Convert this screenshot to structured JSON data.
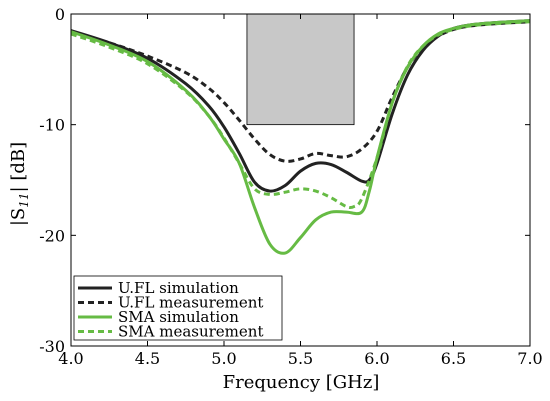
{
  "chart_data": {
    "type": "line",
    "xlabel": "Frequency [GHz]",
    "ylabel": "|S11| [dB]",
    "ylabel_main": "|S",
    "ylabel_sub": "11",
    "ylabel_rest": "| [dB]",
    "xlim": [
      4.0,
      7.0
    ],
    "ylim": [
      -30,
      0
    ],
    "x_ticks": [
      "4.0",
      "4.5",
      "5.0",
      "5.5",
      "6.0",
      "6.5",
      "7.0"
    ],
    "x_tick_values": [
      4.0,
      4.5,
      5.0,
      5.5,
      6.0,
      6.5,
      7.0
    ],
    "y_ticks": [
      "0",
      "-10",
      "-20",
      "-30"
    ],
    "y_tick_values": [
      0,
      -10,
      -20,
      -30
    ],
    "shaded_region": {
      "x": [
        5.15,
        5.85
      ],
      "y": [
        -10,
        0
      ],
      "color": "#c8c8c8"
    },
    "legend_position": "bottom-left",
    "series": [
      {
        "name": "U.FL simulation",
        "color": "#222222",
        "style": "solid",
        "x": [
          4.0,
          4.25,
          4.5,
          4.75,
          4.9,
          5.0,
          5.1,
          5.2,
          5.3,
          5.4,
          5.5,
          5.6,
          5.7,
          5.8,
          5.9,
          5.95,
          6.0,
          6.1,
          6.2,
          6.3,
          6.4,
          6.5,
          6.6,
          6.75,
          7.0
        ],
        "y": [
          -1.5,
          -2.6,
          -4.0,
          -6.3,
          -8.3,
          -10.2,
          -12.6,
          -15.2,
          -16.0,
          -15.5,
          -14.2,
          -13.5,
          -13.6,
          -14.3,
          -15.1,
          -15.0,
          -13.5,
          -9.0,
          -5.5,
          -3.3,
          -2.0,
          -1.3,
          -1.0,
          -0.8,
          -0.6
        ]
      },
      {
        "name": "U.FL measurement",
        "color": "#222222",
        "style": "dashed",
        "x": [
          4.0,
          4.25,
          4.5,
          4.75,
          4.9,
          5.0,
          5.1,
          5.2,
          5.3,
          5.4,
          5.5,
          5.6,
          5.7,
          5.8,
          5.9,
          6.0,
          6.1,
          6.2,
          6.3,
          6.4,
          6.5,
          6.6,
          6.75,
          7.0
        ],
        "y": [
          -1.7,
          -2.6,
          -3.8,
          -5.3,
          -6.7,
          -8.0,
          -9.6,
          -11.3,
          -12.7,
          -13.3,
          -13.1,
          -12.6,
          -12.8,
          -12.9,
          -12.2,
          -10.6,
          -7.5,
          -4.8,
          -3.0,
          -2.0,
          -1.4,
          -1.1,
          -0.9,
          -0.7
        ]
      },
      {
        "name": "SMA simulation",
        "color": "#66bb44",
        "style": "solid",
        "x": [
          4.0,
          4.25,
          4.5,
          4.75,
          4.9,
          5.0,
          5.1,
          5.2,
          5.3,
          5.4,
          5.5,
          5.6,
          5.7,
          5.8,
          5.9,
          5.95,
          6.0,
          6.1,
          6.2,
          6.3,
          6.4,
          6.5,
          6.6,
          6.75,
          7.0
        ],
        "y": [
          -1.6,
          -2.8,
          -4.3,
          -6.9,
          -9.2,
          -11.3,
          -13.5,
          -17.5,
          -20.8,
          -21.6,
          -20.2,
          -18.6,
          -17.9,
          -17.9,
          -17.9,
          -16.0,
          -13.0,
          -8.0,
          -4.8,
          -2.9,
          -1.8,
          -1.3,
          -1.0,
          -0.8,
          -0.6
        ]
      },
      {
        "name": "SMA measurement",
        "color": "#66bb44",
        "style": "dashed",
        "x": [
          4.0,
          4.25,
          4.5,
          4.75,
          4.9,
          5.0,
          5.1,
          5.2,
          5.3,
          5.4,
          5.5,
          5.6,
          5.7,
          5.8,
          5.85,
          5.9,
          6.0,
          6.1,
          6.2,
          6.3,
          6.4,
          6.5,
          6.6,
          6.75,
          7.0
        ],
        "y": [
          -1.8,
          -3.0,
          -4.5,
          -7.0,
          -9.2,
          -11.2,
          -13.5,
          -15.8,
          -16.3,
          -16.1,
          -15.8,
          -16.0,
          -16.6,
          -17.4,
          -17.4,
          -16.7,
          -13.0,
          -8.0,
          -4.7,
          -2.9,
          -1.9,
          -1.4,
          -1.1,
          -0.9,
          -0.7
        ]
      }
    ]
  }
}
